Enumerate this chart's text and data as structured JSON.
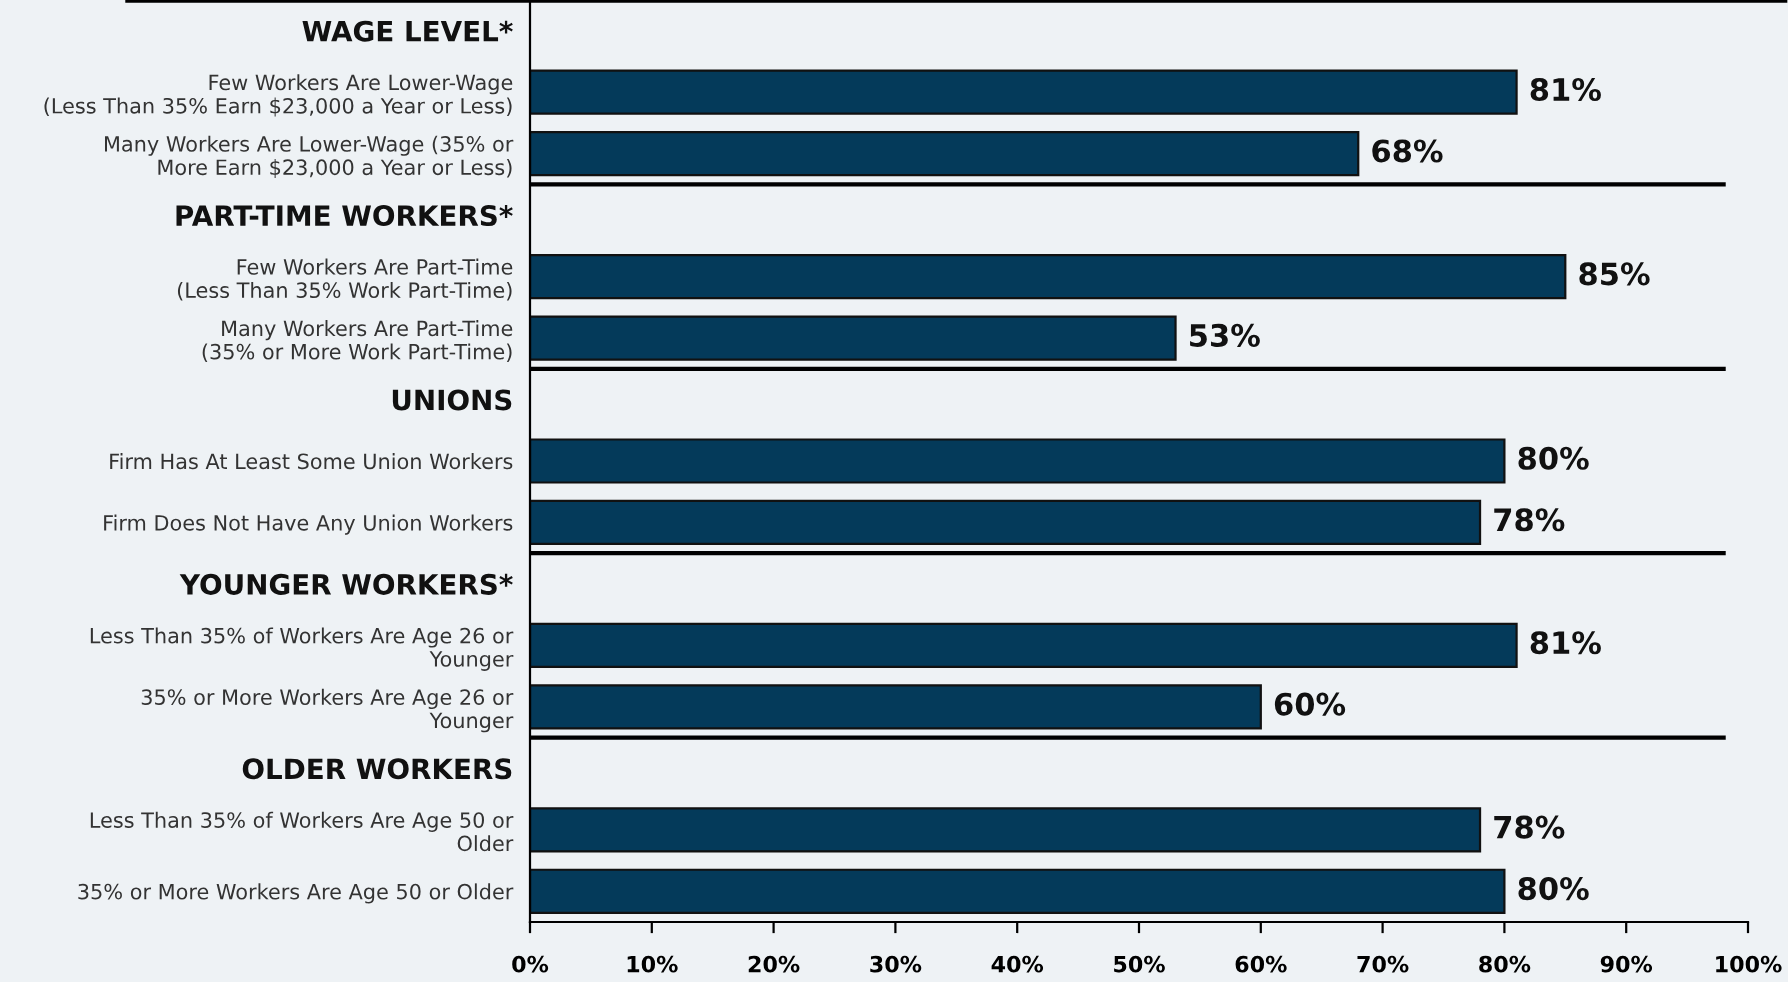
{
  "chart_data": {
    "type": "bar",
    "orientation": "horizontal",
    "categories": [
      "WAGE LEVEL*",
      "Few Workers Are Lower-Wage\n(Less Than 35% Earn $23,000 a Year or Less)",
      "Many Workers Are Lower-Wage (35% or\nMore Earn $23,000 a Year or Less)",
      "PART-TIME WORKERS*",
      "Few Workers Are Part-Time\n(Less Than 35% Work Part-Time)",
      "Many Workers Are Part-Time\n(35% or More Work Part-Time)",
      "UNIONS",
      "Firm Has At Least Some Union Workers",
      "Firm Does Not Have Any Union Workers",
      "YOUNGER WORKERS*",
      "Less Than 35% of Workers Are Age 26 or\nYounger",
      "35% or More Workers Are Age 26 or\nYounger",
      "OLDER WORKERS",
      "Less Than 35% of Workers Are Age 50 or\nOlder",
      "35% or More Workers Are Age 50 or Older"
    ],
    "values": [
      null,
      81,
      68,
      null,
      85,
      53,
      null,
      80,
      78,
      null,
      81,
      60,
      null,
      78,
      80
    ],
    "value_labels": [
      null,
      "81%",
      "68%",
      null,
      "85%",
      "53%",
      null,
      "80%",
      "78%",
      null,
      "81%",
      "60%",
      null,
      "78%",
      "80%"
    ],
    "color": "#043a5a",
    "xlim": [
      0,
      100
    ],
    "xticks": [
      {
        "value": 0,
        "label": "0%"
      },
      {
        "value": 10,
        "label": "10%"
      },
      {
        "value": 20,
        "label": "20%"
      },
      {
        "value": 30,
        "label": "30%"
      },
      {
        "value": 40,
        "label": "40%"
      },
      {
        "value": 50,
        "label": "50%"
      },
      {
        "value": 60,
        "label": "60%"
      },
      {
        "value": 70,
        "label": "70%"
      },
      {
        "value": 80,
        "label": "80%"
      },
      {
        "value": 90,
        "label": "90%"
      },
      {
        "value": 100,
        "label": "100%"
      }
    ],
    "grid": false,
    "legend": false
  }
}
